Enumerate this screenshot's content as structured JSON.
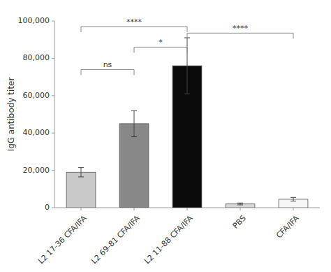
{
  "chart_data": {
    "type": "bar",
    "categories": [
      "L2 17-36 CFA/IFA",
      "L2 69-81 CFA/IFA",
      "L2 11-88 CFA/IFA",
      "PBS",
      "CFA/IFA"
    ],
    "values": [
      19000,
      45000,
      76000,
      2000,
      4500
    ],
    "errors": [
      2500,
      7000,
      15000,
      500,
      1000
    ],
    "colors": [
      "#c8c8c8",
      "#888888",
      "#0a0a0a",
      "#d8d8d8",
      "#f5f5f5"
    ],
    "ylabel": "IgG antibody titer",
    "ylim": [
      0,
      100000
    ],
    "yticks": [
      0,
      {
        "value": 20000,
        "label": "20,000"
      },
      {
        "value": 40000,
        "label": "40,000"
      },
      {
        "value": 60000,
        "label": "60,000"
      },
      {
        "value": 80000,
        "label": "80,000"
      },
      {
        "value": 100000,
        "label": "100,000"
      }
    ],
    "annotations": [
      {
        "text": "ns",
        "between": [
          "L2 17-36 CFA/IFA",
          "L2 69-81 CFA/IFA"
        ],
        "y": 74000
      },
      {
        "text": "****",
        "between": [
          "L2 17-36 CFA/IFA",
          "L2 11-88 CFA/IFA"
        ],
        "y": 97000
      },
      {
        "text": "*",
        "between": [
          "L2 69-81 CFA/IFA",
          "L2 11-88 CFA/IFA"
        ],
        "y": 86000
      },
      {
        "text": "****",
        "between": [
          "L2 11-88 CFA/IFA",
          "CFA/IFA"
        ],
        "y": 93500
      }
    ]
  }
}
